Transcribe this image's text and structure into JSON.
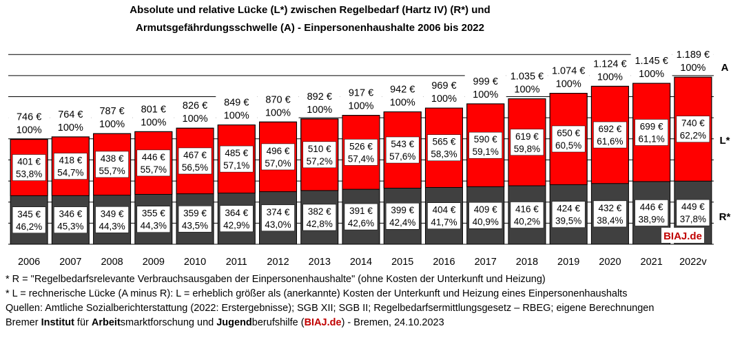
{
  "chart_data": {
    "type": "bar",
    "stacked": true,
    "title": "Absolute und relative Lücke (L*) zwischen Regelbedarf (Hartz IV) (R*) und",
    "subtitle": "Armutsgefährdungsschwelle (A) -  Einpersonenhaushalte 2006 bis 2022",
    "categories": [
      "2006",
      "2007",
      "2008",
      "2009",
      "2010",
      "2011",
      "2012",
      "2013",
      "2014",
      "2015",
      "2016",
      "2017",
      "2018",
      "2019",
      "2020",
      "2021",
      "2022v"
    ],
    "series": [
      {
        "name": "R*",
        "color": "#404040",
        "values": [
          345,
          346,
          349,
          355,
          359,
          364,
          374,
          382,
          391,
          399,
          404,
          409,
          416,
          424,
          432,
          446,
          449
        ],
        "percent_labels": [
          "46,2%",
          "45,3%",
          "44,3%",
          "44,3%",
          "43,5%",
          "42,9%",
          "43,0%",
          "42,8%",
          "42,6%",
          "42,4%",
          "41,7%",
          "40,9%",
          "40,2%",
          "39,5%",
          "38,4%",
          "38,9%",
          "37,8%"
        ]
      },
      {
        "name": "L*",
        "color": "#ff0000",
        "values": [
          401,
          418,
          438,
          446,
          467,
          485,
          496,
          510,
          526,
          543,
          565,
          590,
          619,
          650,
          692,
          699,
          740
        ],
        "percent_labels": [
          "53,8%",
          "54,7%",
          "55,7%",
          "55,7%",
          "56,5%",
          "57,1%",
          "57,0%",
          "57,2%",
          "57,4%",
          "57,6%",
          "58,3%",
          "59,1%",
          "59,8%",
          "60,5%",
          "61,6%",
          "61,1%",
          "62,2%"
        ]
      }
    ],
    "totals": [
      746,
      764,
      787,
      801,
      826,
      849,
      870,
      892,
      917,
      942,
      969,
      999,
      1035,
      1074,
      1124,
      1145,
      1189
    ],
    "total_value_labels": [
      "746 €",
      "764 €",
      "787 €",
      "801 €",
      "826 €",
      "849 €",
      "870 €",
      "892 €",
      "917 €",
      "942 €",
      "969 €",
      "999 €",
      "1.035 €",
      "1.074 €",
      "1.124 €",
      "1.145 €",
      "1.189 €"
    ],
    "total_percent_label": "100%",
    "r_value_labels": [
      "345 €",
      "346 €",
      "349 €",
      "355 €",
      "359 €",
      "364 €",
      "374 €",
      "382 €",
      "391 €",
      "399 €",
      "404 €",
      "409 €",
      "416 €",
      "424 €",
      "432 €",
      "446 €",
      "449 €"
    ],
    "l_value_labels": [
      "401 €",
      "418 €",
      "438 €",
      "446 €",
      "467 €",
      "485 €",
      "496 €",
      "510 €",
      "526 €",
      "543 €",
      "565 €",
      "590 €",
      "619 €",
      "650 €",
      "692 €",
      "699 €",
      "740 €"
    ],
    "ylim": [
      0,
      1350
    ],
    "grid": true,
    "right_labels": {
      "a": "A",
      "l": "L*",
      "r": "R*"
    },
    "watermark": "BIAJ.de",
    "colors": {
      "r": "#404040",
      "l": "#ff0000",
      "watermark": "#c00000",
      "grid": "#000000"
    }
  },
  "footer": {
    "line1": "* R = \"Regelbedarfsrelevante Verbrauchsausgaben der Einpersonenhaushalte\" (ohne Kosten der Unterkunft und Heizung)",
    "line2": "* L = rechnerische Lücke (A minus R): L = erheblich größer als (anerkannte) Kosten der Unterkunft und Heizung eines Einpersonenhaushalts",
    "line3": "Quellen: Amtliche Sozialberichterstattung (2022: Erstergebnisse); SGB XII; SGB II; Regelbedarfsermittlungsgesetz – RBEG; eigene Berechnungen",
    "line4": {
      "w1a": "Bremer ",
      "w1b": "Institut",
      "w2a": " für ",
      "w2b": "Arbeit",
      "w2c": "smarktforschung und ",
      "w3b": "Jugend",
      "w3c": "berufshilfe (",
      "site": "BIAJ.de",
      "rest": ") - Bremen, 24.10.2023"
    }
  }
}
